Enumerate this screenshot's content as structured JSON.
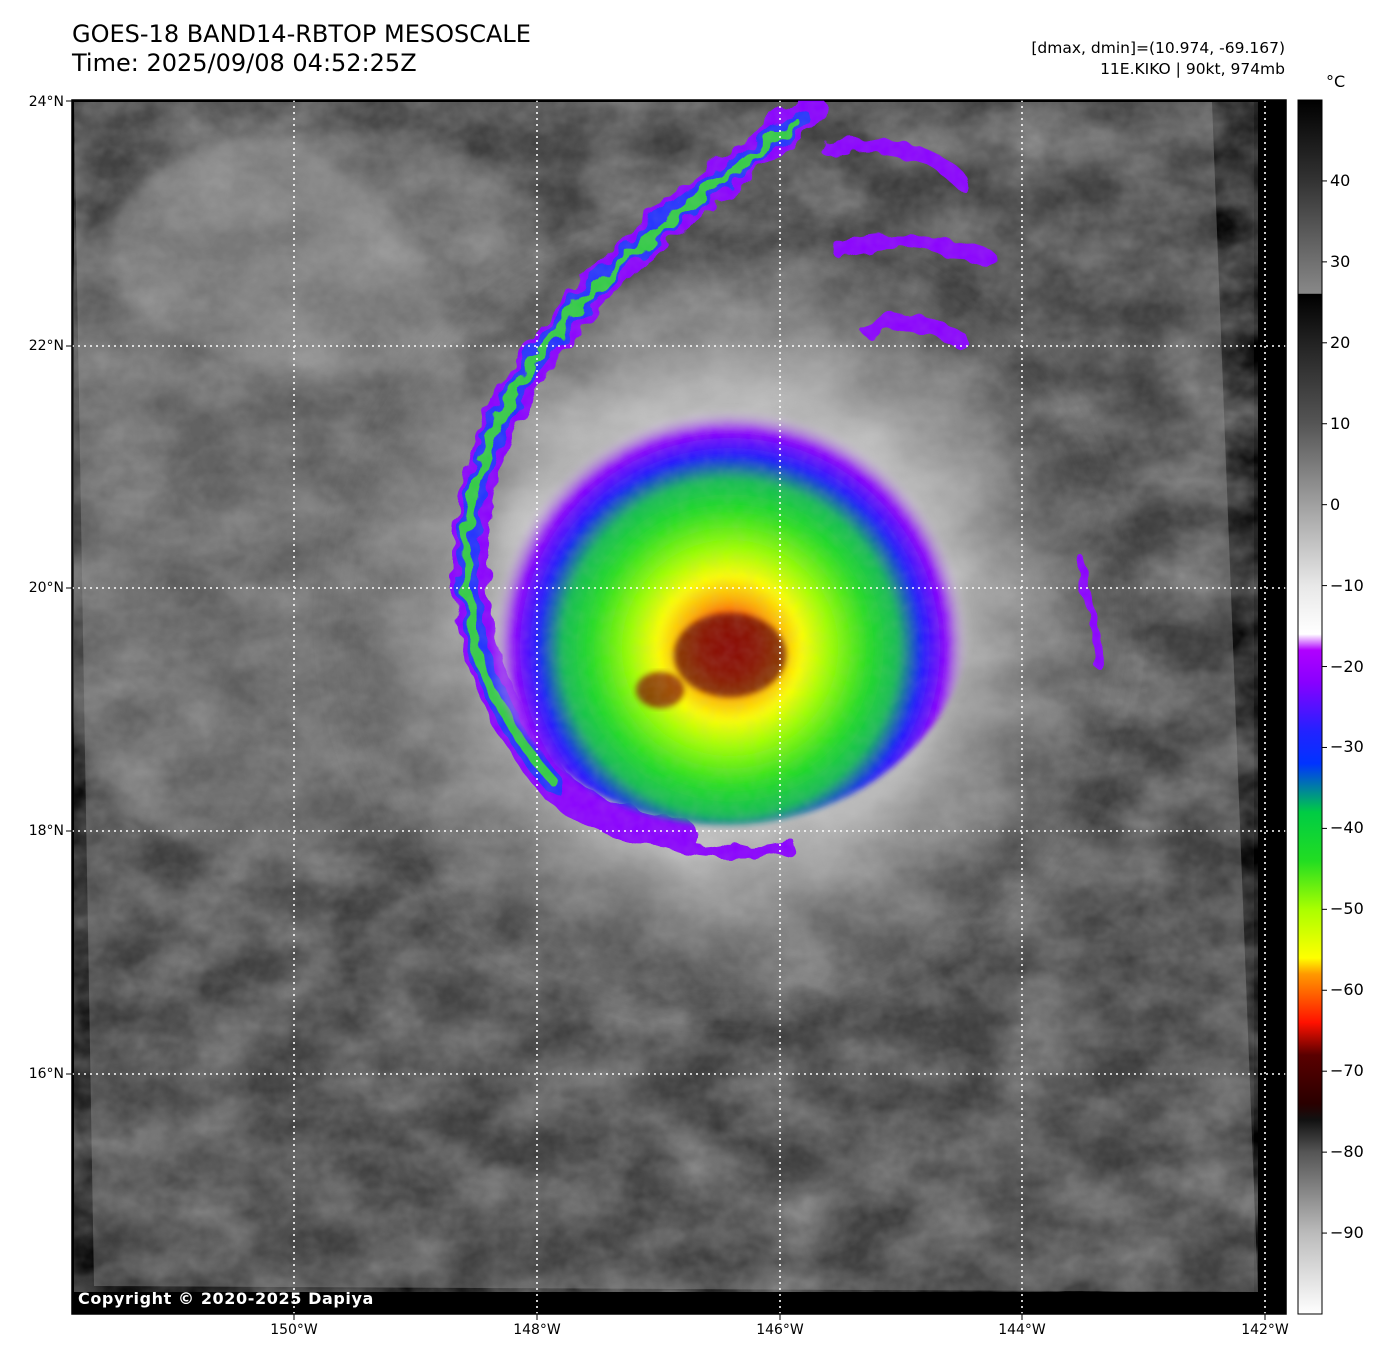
{
  "header": {
    "title_line1": "GOES-18 BAND14-RBTOP MESOSCALE",
    "title_line2": "Time: 2025/09/08 04:52:25Z",
    "stats": "[dmax, dmin]=(10.974, -69.167)",
    "storm": "11E.KIKO | 90kt, 974mb"
  },
  "map": {
    "lat_labels": [
      "24°N",
      "22°N",
      "20°N",
      "18°N",
      "16°N"
    ],
    "lon_labels": [
      "150°W",
      "148°W",
      "146°W",
      "144°W",
      "142°W"
    ],
    "copyright": "Copyright © 2020-2025 Dapiya"
  },
  "colorbar": {
    "unit": "°C",
    "ticks": [
      "40",
      "30",
      "20",
      "10",
      "0",
      "−10",
      "−20",
      "−30",
      "−40",
      "−50",
      "−60",
      "−70",
      "−80",
      "−90"
    ],
    "tick_values": [
      40,
      30,
      20,
      10,
      0,
      -10,
      -20,
      -30,
      -40,
      -50,
      -60,
      -70,
      -80,
      -90
    ],
    "range": [
      -100,
      50
    ],
    "colors": {
      "warm_gray": "#888888",
      "black": "#000000",
      "white": "#f5f5f5",
      "purple": "#b000ff",
      "blue": "#1a1aff",
      "green": "#22dd22",
      "yellow": "#ffff00",
      "orange": "#ff9900",
      "red": "#ff1100",
      "dark_red": "#5a0000"
    }
  }
}
